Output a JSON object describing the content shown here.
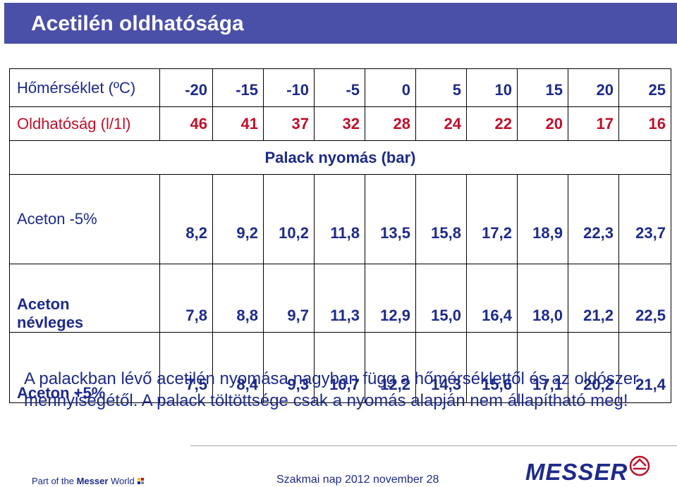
{
  "title": "Acetilén oldhatósága",
  "table": {
    "temperature": {
      "label": "Hőmérséklet (ºC)",
      "values": [
        "-20",
        "-15",
        "-10",
        "-5",
        "0",
        "5",
        "10",
        "15",
        "20",
        "25"
      ]
    },
    "solubility": {
      "label": "Oldhatóság (l/1l)",
      "values": [
        "46",
        "41",
        "37",
        "32",
        "28",
        "24",
        "22",
        "20",
        "17",
        "16"
      ]
    },
    "pressure_header": "Palack nyomás (bar)",
    "aceton_minus": {
      "label": "Aceton -5%",
      "values": [
        "8,2",
        "9,2",
        "10,2",
        "11,8",
        "13,5",
        "15,8",
        "17,2",
        "18,9",
        "22,3",
        "23,7"
      ]
    },
    "aceton_nominal": {
      "label_line1": "Aceton",
      "label_line2": "névleges",
      "values": [
        "7,8",
        "8,8",
        "9,7",
        "11,3",
        "12,9",
        "15,0",
        "16,4",
        "18,0",
        "21,2",
        "22,5"
      ]
    },
    "aceton_plus": {
      "label": "Aceton +5%",
      "values": [
        "7,5",
        "8,4",
        "9,3",
        "10,7",
        "12,2",
        "14,3",
        "15,6",
        "17,1",
        "20,2",
        "21,4"
      ]
    }
  },
  "note": "A palackban lévő acetilén nyomása nagyban függ a hőmérséklettől és az oldószer mennyiségétől. A palack töltöttsége csak a nyomás alapján nem állapítható meg!",
  "footer": {
    "left_prefix": "Part of the ",
    "left_brand": "Messer",
    "left_suffix": " World",
    "center": "Szakmai nap 2012 november 28",
    "logo_text": "MESSER"
  },
  "colors": {
    "title_bar": "#4a4fa8",
    "text_blue": "#1d2a8a",
    "text_red": "#c0102a"
  },
  "icons": {
    "logo_mark": "messer-logo-icon",
    "footer_squares": "color-squares-icon"
  }
}
